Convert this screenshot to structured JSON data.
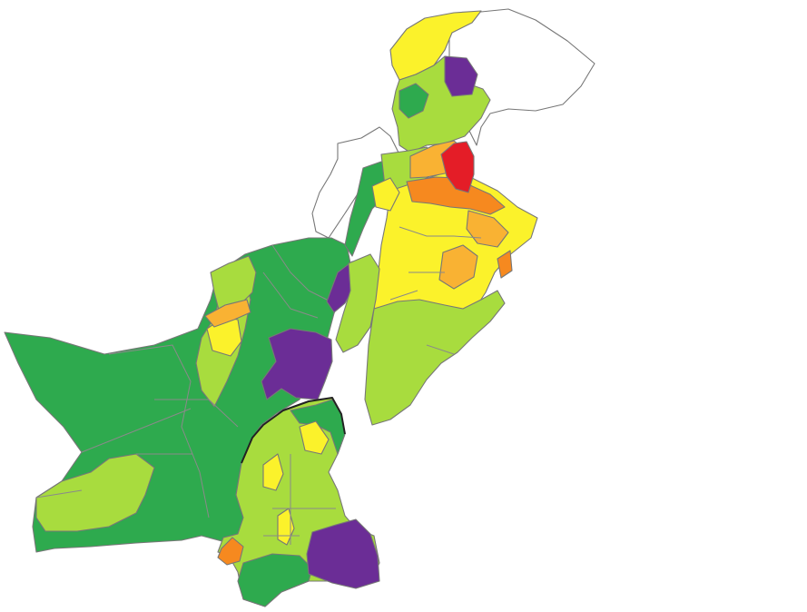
{
  "map": {
    "type": "choropleth",
    "subject": "districts",
    "palette": {
      "dark_green": "#2eaa4e",
      "light_green": "#a8dc3e",
      "yellow": "#fbf22b",
      "light_orange": "#f9b233",
      "orange": "#f6891f",
      "red": "#e41d27",
      "purple": "#6b2d96",
      "no_data": "#ffffff",
      "border": "#777777"
    },
    "regions": [
      {
        "name": "north-tip",
        "class": "yellow"
      },
      {
        "name": "north-purple",
        "class": "purple"
      },
      {
        "name": "north-greens",
        "class": "light_green"
      },
      {
        "name": "north-dark",
        "class": "dark_green"
      },
      {
        "name": "red-hotspot",
        "class": "red"
      },
      {
        "name": "orange-band",
        "class": "orange"
      },
      {
        "name": "punjab-yellow",
        "class": "yellow"
      },
      {
        "name": "punjab-orange",
        "class": "light_orange"
      },
      {
        "name": "balochistan-main",
        "class": "dark_green"
      },
      {
        "name": "balochistan-north-purple",
        "class": "purple"
      },
      {
        "name": "balochistan-center-purple",
        "class": "purple"
      },
      {
        "name": "sindh-main",
        "class": "light_green"
      },
      {
        "name": "sindh-south-purple",
        "class": "purple"
      },
      {
        "name": "karachi-orange",
        "class": "orange"
      },
      {
        "name": "unassigned-north",
        "class": "no_data"
      }
    ]
  }
}
